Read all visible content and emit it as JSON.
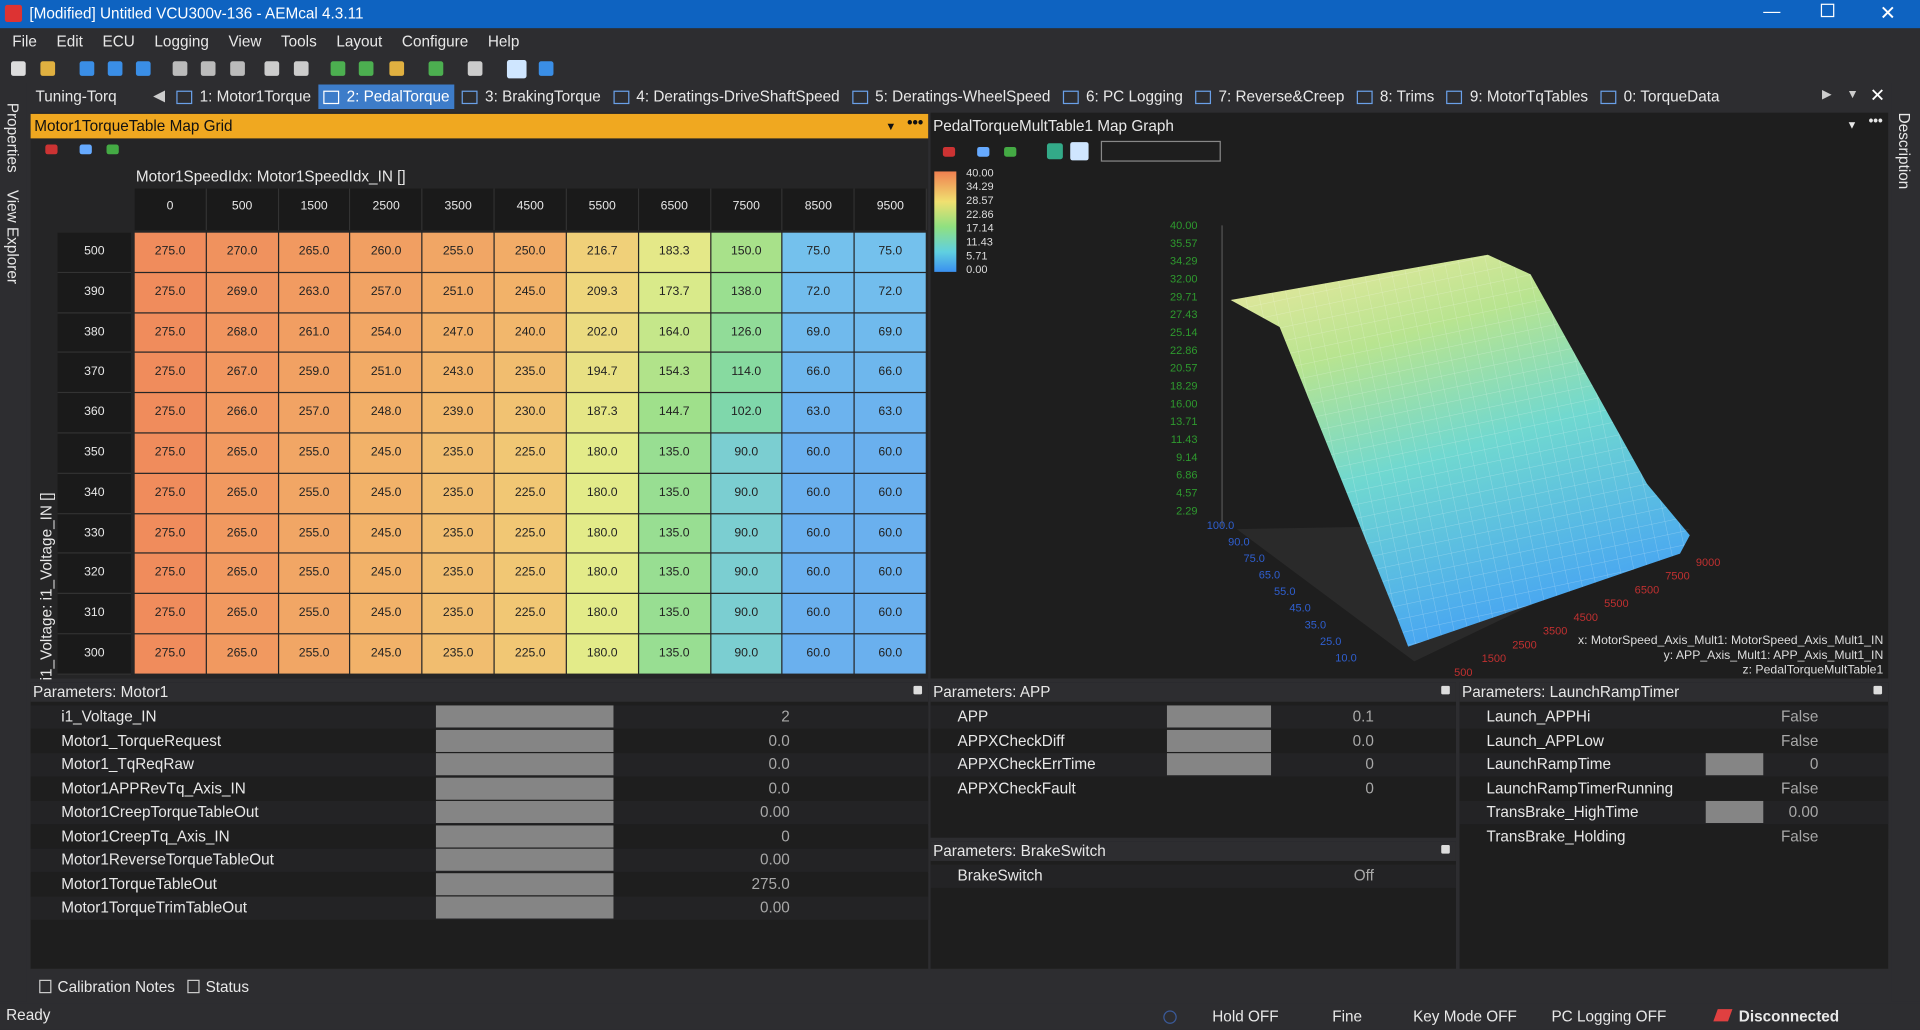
{
  "title_bar": {
    "title": "[Modified] Untitled VCU300v-136 - AEMcal 4.3.11"
  },
  "menu": [
    "File",
    "Edit",
    "ECU",
    "Logging",
    "View",
    "Tools",
    "Layout",
    "Configure",
    "Help"
  ],
  "side_tabs": {
    "left": [
      "Properties",
      "View Explorer"
    ],
    "right": [
      "Description"
    ]
  },
  "tabs": {
    "group": "Tuning-Torq",
    "active_index": 1,
    "items": [
      "1: Motor1Torque",
      "2: PedalTorque",
      "3: BrakingTorque",
      "4: Deratings-DriveShaftSpeed",
      "5: Deratings-WheelSpeed",
      "6: PC Logging",
      "7: Reverse&Creep",
      "8: Trims",
      "9: MotorTqTables",
      "0: TorqueData"
    ]
  },
  "map_grid": {
    "title": "Motor1TorqueTable Map Grid",
    "x_axis_label": "Motor1SpeedIdx: Motor1SpeedIdx_IN []",
    "y_axis_label": "i1_Voltage: i1_Voltage_IN []",
    "columns": [
      "0",
      "500",
      "1500",
      "2500",
      "3500",
      "4500",
      "5500",
      "6500",
      "7500",
      "8500",
      "9500"
    ],
    "rows": [
      {
        "label": "500",
        "cells": [
          "275.0",
          "270.0",
          "265.0",
          "260.0",
          "255.0",
          "250.0",
          "216.7",
          "183.3",
          "150.0",
          "75.0",
          "75.0"
        ]
      },
      {
        "label": "390",
        "cells": [
          "275.0",
          "269.0",
          "263.0",
          "257.0",
          "251.0",
          "245.0",
          "209.3",
          "173.7",
          "138.0",
          "72.0",
          "72.0"
        ]
      },
      {
        "label": "380",
        "cells": [
          "275.0",
          "268.0",
          "261.0",
          "254.0",
          "247.0",
          "240.0",
          "202.0",
          "164.0",
          "126.0",
          "69.0",
          "69.0"
        ]
      },
      {
        "label": "370",
        "cells": [
          "275.0",
          "267.0",
          "259.0",
          "251.0",
          "243.0",
          "235.0",
          "194.7",
          "154.3",
          "114.0",
          "66.0",
          "66.0"
        ]
      },
      {
        "label": "360",
        "cells": [
          "275.0",
          "266.0",
          "257.0",
          "248.0",
          "239.0",
          "230.0",
          "187.3",
          "144.7",
          "102.0",
          "63.0",
          "63.0"
        ]
      },
      {
        "label": "350",
        "cells": [
          "275.0",
          "265.0",
          "255.0",
          "245.0",
          "235.0",
          "225.0",
          "180.0",
          "135.0",
          "90.0",
          "60.0",
          "60.0"
        ]
      },
      {
        "label": "340",
        "cells": [
          "275.0",
          "265.0",
          "255.0",
          "245.0",
          "235.0",
          "225.0",
          "180.0",
          "135.0",
          "90.0",
          "60.0",
          "60.0"
        ]
      },
      {
        "label": "330",
        "cells": [
          "275.0",
          "265.0",
          "255.0",
          "245.0",
          "235.0",
          "225.0",
          "180.0",
          "135.0",
          "90.0",
          "60.0",
          "60.0"
        ]
      },
      {
        "label": "320",
        "cells": [
          "275.0",
          "265.0",
          "255.0",
          "245.0",
          "235.0",
          "225.0",
          "180.0",
          "135.0",
          "90.0",
          "60.0",
          "60.0"
        ]
      },
      {
        "label": "310",
        "cells": [
          "275.0",
          "265.0",
          "255.0",
          "245.0",
          "235.0",
          "225.0",
          "180.0",
          "135.0",
          "90.0",
          "60.0",
          "60.0"
        ]
      },
      {
        "label": "300",
        "cells": [
          "275.0",
          "265.0",
          "255.0",
          "245.0",
          "235.0",
          "225.0",
          "180.0",
          "135.0",
          "90.0",
          "60.0",
          "60.0"
        ]
      }
    ]
  },
  "map_graph": {
    "title": "PedalTorqueMultTable1 Map Graph",
    "color_legend": [
      "40.00",
      "34.29",
      "28.57",
      "22.86",
      "17.14",
      "11.43",
      "5.71",
      "0.00"
    ],
    "z_ticks": [
      "40.00",
      "35.57",
      "34.29",
      "32.00",
      "29.71",
      "27.43",
      "25.14",
      "22.86",
      "20.57",
      "18.29",
      "16.00",
      "13.71",
      "11.43",
      "9.14",
      "6.86",
      "4.57",
      "2.29"
    ],
    "y_ticks": [
      "100.0",
      "90.0",
      "75.0",
      "65.0",
      "55.0",
      "45.0",
      "35.0",
      "25.0",
      "10.0"
    ],
    "x_ticks": [
      "500",
      "1500",
      "2500",
      "3500",
      "4500",
      "5500",
      "6500",
      "7500",
      "9000"
    ],
    "axis_notes": [
      "x: MotorSpeed_Axis_Mult1: MotorSpeed_Axis_Mult1_IN",
      "y: APP_Axis_Mult1: APP_Axis_Mult1_IN",
      "z: PedalTorqueMultTable1"
    ]
  },
  "parameters": [
    {
      "title": "Parameters: Motor1",
      "rows": [
        {
          "name": "i1_Voltage_IN",
          "value": "2",
          "bar": true
        },
        {
          "name": "Motor1_TorqueRequest",
          "value": "0.0",
          "bar": true
        },
        {
          "name": "Motor1_TqReqRaw",
          "value": "0.0",
          "bar": true
        },
        {
          "name": "Motor1APPRevTq_Axis_IN",
          "value": "0.0",
          "bar": true
        },
        {
          "name": "Motor1CreepTorqueTableOut",
          "value": "0.00",
          "bar": true
        },
        {
          "name": "Motor1CreepTq_Axis_IN",
          "value": "0",
          "bar": true
        },
        {
          "name": "Motor1ReverseTorqueTableOut",
          "value": "0.00",
          "bar": true
        },
        {
          "name": "Motor1TorqueTableOut",
          "value": "275.0",
          "bar": true
        },
        {
          "name": "Motor1TorqueTrimTableOut",
          "value": "0.00",
          "bar": true
        }
      ]
    },
    {
      "title": "Parameters: APP",
      "rows": [
        {
          "name": "APP",
          "value": "0.1",
          "bar": true
        },
        {
          "name": "APPXCheckDiff",
          "value": "0.0",
          "bar": true
        },
        {
          "name": "APPXCheckErrTime",
          "value": "0",
          "bar": true
        },
        {
          "name": "APPXCheckFault",
          "value": "0",
          "bar": false
        }
      ]
    },
    {
      "title": "Parameters: BrakeSwitch",
      "rows": [
        {
          "name": "BrakeSwitch",
          "value": "Off",
          "bar": false
        }
      ]
    },
    {
      "title": "Parameters: LaunchRampTimer",
      "rows": [
        {
          "name": "Launch_APPHi",
          "value": "False",
          "bar": false
        },
        {
          "name": "Launch_APPLow",
          "value": "False",
          "bar": false
        },
        {
          "name": "LaunchRampTime",
          "value": "0",
          "bar": true
        },
        {
          "name": "LaunchRampTimerRunning",
          "value": "False",
          "bar": false
        },
        {
          "name": "TransBrake_HighTime",
          "value": "0.00",
          "bar": true
        },
        {
          "name": "TransBrake_Holding",
          "value": "False",
          "bar": false
        }
      ]
    }
  ],
  "bottom_tabs": [
    "Calibration Notes",
    "Status"
  ],
  "status_bar": {
    "state": "Ready",
    "items": [
      "Hold OFF",
      "Fine",
      "Key Mode OFF",
      "PC Logging OFF"
    ],
    "connection": "Disconnected"
  }
}
